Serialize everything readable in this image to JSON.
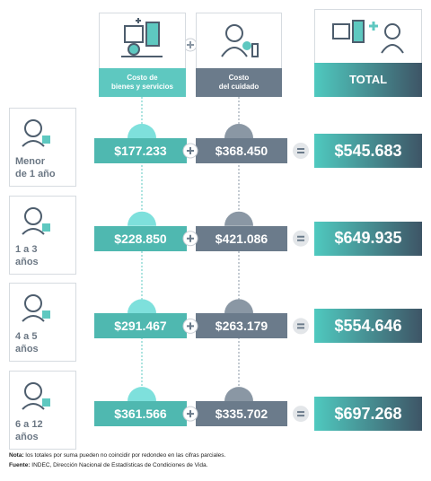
{
  "header": {
    "goods_label": [
      "Costo de",
      "bienes y servicios"
    ],
    "care_label": [
      "Costo",
      "del cuidado"
    ],
    "total_label": "TOTAL"
  },
  "rows": [
    {
      "age": [
        "Menor",
        "de 1 año"
      ],
      "goods": "$177.233",
      "care": "$368.450",
      "total": "$545.683"
    },
    {
      "age": [
        "1 a 3",
        "años"
      ],
      "goods": "$228.850",
      "care": "$421.086",
      "total": "$649.935"
    },
    {
      "age": [
        "4 a 5",
        "años"
      ],
      "goods": "$291.467",
      "care": "$263.179",
      "total": "$554.646"
    },
    {
      "age": [
        "6 a 12",
        "años"
      ],
      "goods": "$361.566",
      "care": "$335.702",
      "total": "$697.268"
    }
  ],
  "footer": {
    "note_label": "Nota:",
    "note": "los totales por suma pueden no coincidir por redondeo en las cifras parciales.",
    "source_label": "Fuente:",
    "source": "INDEC, Dirección Nacional de Estadísticas de Condiciones de Vida."
  }
}
